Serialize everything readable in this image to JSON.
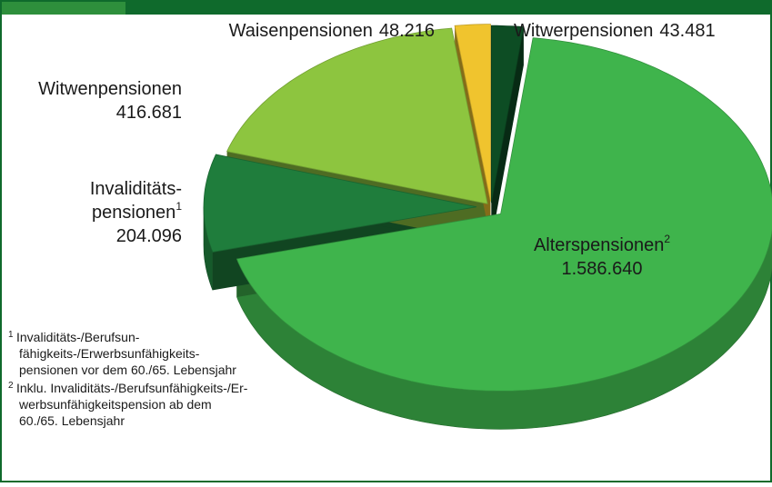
{
  "chart_data": {
    "type": "pie",
    "categories": [
      "Witwerpensionen",
      "Alterspensionen",
      "Invaliditäts-\npensionen",
      "Witwenpensionen",
      "Waisenpensionen"
    ],
    "values": [
      43481,
      1586640,
      204096,
      416681,
      48216
    ],
    "value_labels": [
      "43.481",
      "1.586.640",
      "204.096",
      "416.681",
      "48.216"
    ],
    "colors": [
      "#0d4d24",
      "#3fb44c",
      "#1f7d3c",
      "#8dc53f",
      "#f0c42e"
    ],
    "footnote_refs": {
      "1": "2",
      "2": "1"
    },
    "footnotes": [
      {
        "mark": "1",
        "lines": [
          "Invaliditäts-/Berufsun-",
          "fähigkeits-/Erwerbsunfähigkeits-",
          "pensionen vor dem 60./65. Lebensjahr"
        ]
      },
      {
        "mark": "2",
        "lines": [
          "Inklu. Invaliditäts-/Berufsunfähigkeits-/Er-",
          "werbsunfähigkeitspension  ab dem",
          "60./65. Lebensjahr"
        ]
      }
    ]
  }
}
